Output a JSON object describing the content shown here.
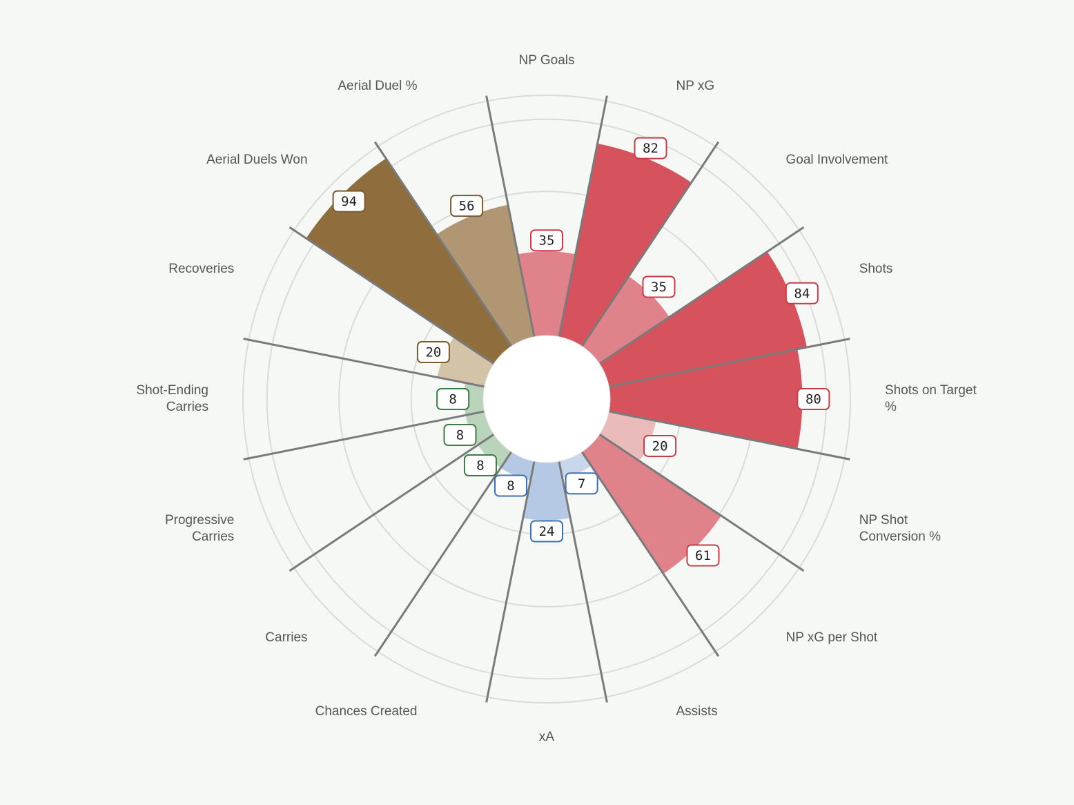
{
  "chart_data": {
    "type": "polar_bar",
    "categories": [
      "NP Goals",
      "NP xG",
      "Goal Involvement",
      "Shots",
      "Shots on Target %",
      "NP Shot Conversion %",
      "NP xG per Shot",
      "Assists",
      "xA",
      "Chances Created",
      "Carries",
      "Progressive Carries",
      "Shot-Ending Carries",
      "Recoveries",
      "Aerial Duels Won",
      "Aerial Duel %"
    ],
    "values": [
      35,
      82,
      35,
      84,
      80,
      20,
      61,
      7,
      24,
      8,
      8,
      8,
      8,
      20,
      94,
      56
    ],
    "colors": [
      "#e0828a",
      "#d6535d",
      "#e0828a",
      "#d6535d",
      "#d6535d",
      "#ebbaba",
      "#e0828a",
      "#c9d7ec",
      "#b5c9e5",
      "#b5c9e5",
      "#b9d4bb",
      "#b9d4bb",
      "#b9d4bb",
      "#d3c3a7",
      "#8f6d3c",
      "#b09672"
    ],
    "border_colors": [
      "#c93b47",
      "#c93b47",
      "#c93b47",
      "#c93b47",
      "#c93b47",
      "#c93b47",
      "#c93b47",
      "#3b70b7",
      "#3b70b7",
      "#3b70b7",
      "#3c7b46",
      "#3c7b46",
      "#3c7b46",
      "#7b5b2b",
      "#7b5b2b",
      "#7b5b2b"
    ],
    "ylim": [
      0,
      100
    ],
    "grid_values": [
      30,
      60,
      90,
      100
    ]
  }
}
